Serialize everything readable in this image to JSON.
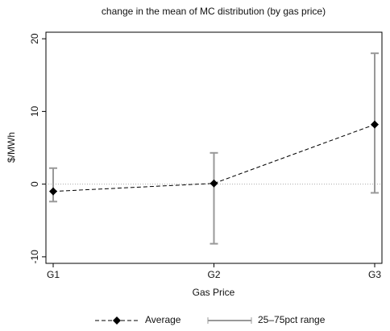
{
  "chart_data": {
    "type": "line",
    "title": "change in the mean of MC distribution (by gas price)",
    "x_label": "Gas Price",
    "y_label": "$/MWh",
    "categories": [
      "G1",
      "G2",
      "G3"
    ],
    "series": [
      {
        "name": "Average",
        "color": "#000000",
        "values": [
          -1,
          0.1,
          8.2
        ]
      },
      {
        "name": "25–75pct range",
        "color": "#999999",
        "low": [
          -2.4,
          -8.2,
          -1.2
        ],
        "high": [
          2.2,
          4.3,
          18
        ]
      }
    ],
    "ylim": [
      -10.9,
      20.9
    ],
    "yticks": [
      -10,
      0,
      10,
      20
    ],
    "hline": 0,
    "legend": "bottom"
  }
}
